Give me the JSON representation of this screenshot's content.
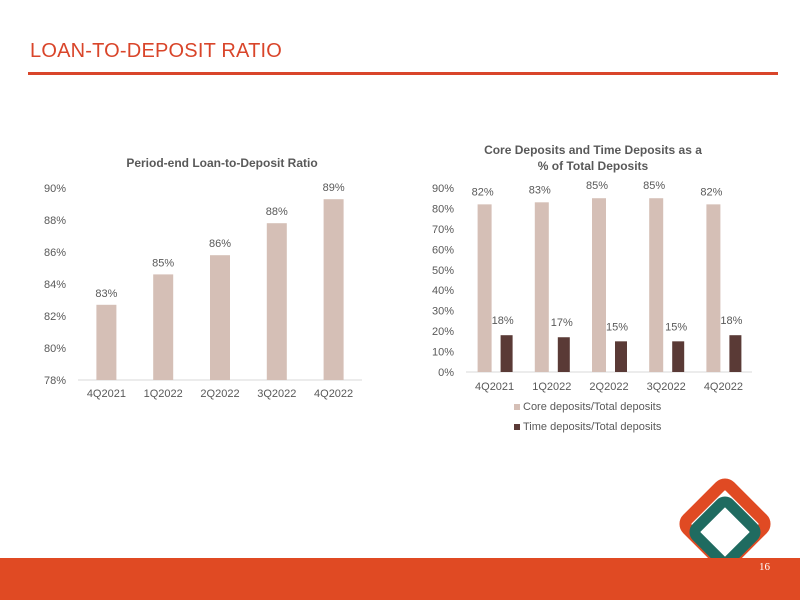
{
  "slide": {
    "title": "LOAN-TO-DEPOSIT RATIO",
    "page_number": "16",
    "accent_color": "#d9452a"
  },
  "chart_data": [
    {
      "type": "bar",
      "title": "Period-end Loan-to-Deposit Ratio",
      "categories": [
        "4Q2021",
        "1Q2022",
        "2Q2022",
        "3Q2022",
        "4Q2022"
      ],
      "values": [
        82.7,
        84.6,
        85.8,
        87.8,
        89.3
      ],
      "data_labels": [
        "83%",
        "85%",
        "86%",
        "88%",
        "89%"
      ],
      "ylim": [
        78,
        90
      ],
      "yticks": [
        "78%",
        "80%",
        "82%",
        "84%",
        "86%",
        "88%",
        "90%"
      ],
      "bar_color": "#d5bfb6"
    },
    {
      "type": "bar",
      "title": [
        "Core Deposits and Time Deposits as a",
        "% of Total Deposits"
      ],
      "categories": [
        "4Q2021",
        "1Q2022",
        "2Q2022",
        "3Q2022",
        "4Q2022"
      ],
      "series": [
        {
          "name": "Core deposits/Total deposits",
          "values": [
            82,
            83,
            85,
            85,
            82
          ],
          "labels": [
            "82%",
            "83%",
            "85%",
            "85%",
            "82%"
          ],
          "color": "#d5bfb6"
        },
        {
          "name": "Time deposits/Total deposits",
          "values": [
            18,
            17,
            15,
            15,
            18
          ],
          "labels": [
            "18%",
            "17%",
            "15%",
            "15%",
            "18%"
          ],
          "color": "#5a3a36"
        }
      ],
      "ylim": [
        0,
        90
      ],
      "yticks": [
        "0%",
        "10%",
        "20%",
        "30%",
        "40%",
        "50%",
        "60%",
        "70%",
        "80%",
        "90%"
      ],
      "legend_position": "bottom"
    }
  ]
}
